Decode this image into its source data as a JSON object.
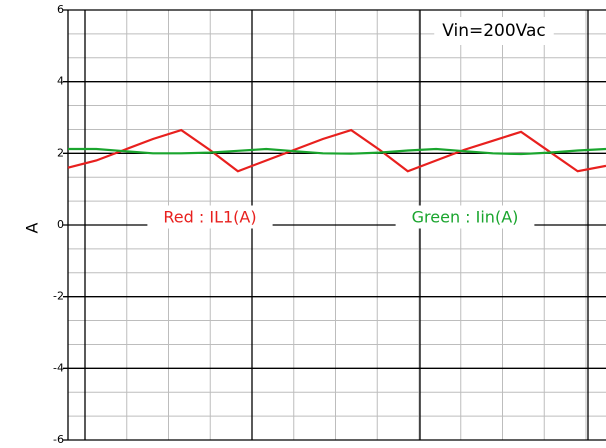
{
  "chart_data": {
    "type": "line",
    "y_label": "A",
    "annotation": "Vin=200Vac",
    "series": [
      {
        "name": "Red : IL1(A)",
        "color": "#e8201e",
        "values": [
          1.6,
          1.8,
          2.1,
          2.4,
          2.65,
          2.1,
          1.5,
          1.8,
          2.1,
          2.4,
          2.65,
          2.1,
          1.5,
          1.8,
          2.1,
          2.35,
          2.6,
          2.05,
          1.5,
          1.65
        ]
      },
      {
        "name": "Green : Iin(A)",
        "color": "#1aa52e",
        "values": [
          2.12,
          2.12,
          2.06,
          2.0,
          2.0,
          2.02,
          2.07,
          2.12,
          2.06,
          2.0,
          1.99,
          2.02,
          2.08,
          2.12,
          2.06,
          2.0,
          1.98,
          2.02,
          2.08,
          2.12
        ]
      }
    ],
    "ylim": [
      -6,
      6
    ],
    "yticks": [
      -6,
      -4,
      -2,
      0,
      2,
      4,
      6
    ],
    "grid": true
  }
}
